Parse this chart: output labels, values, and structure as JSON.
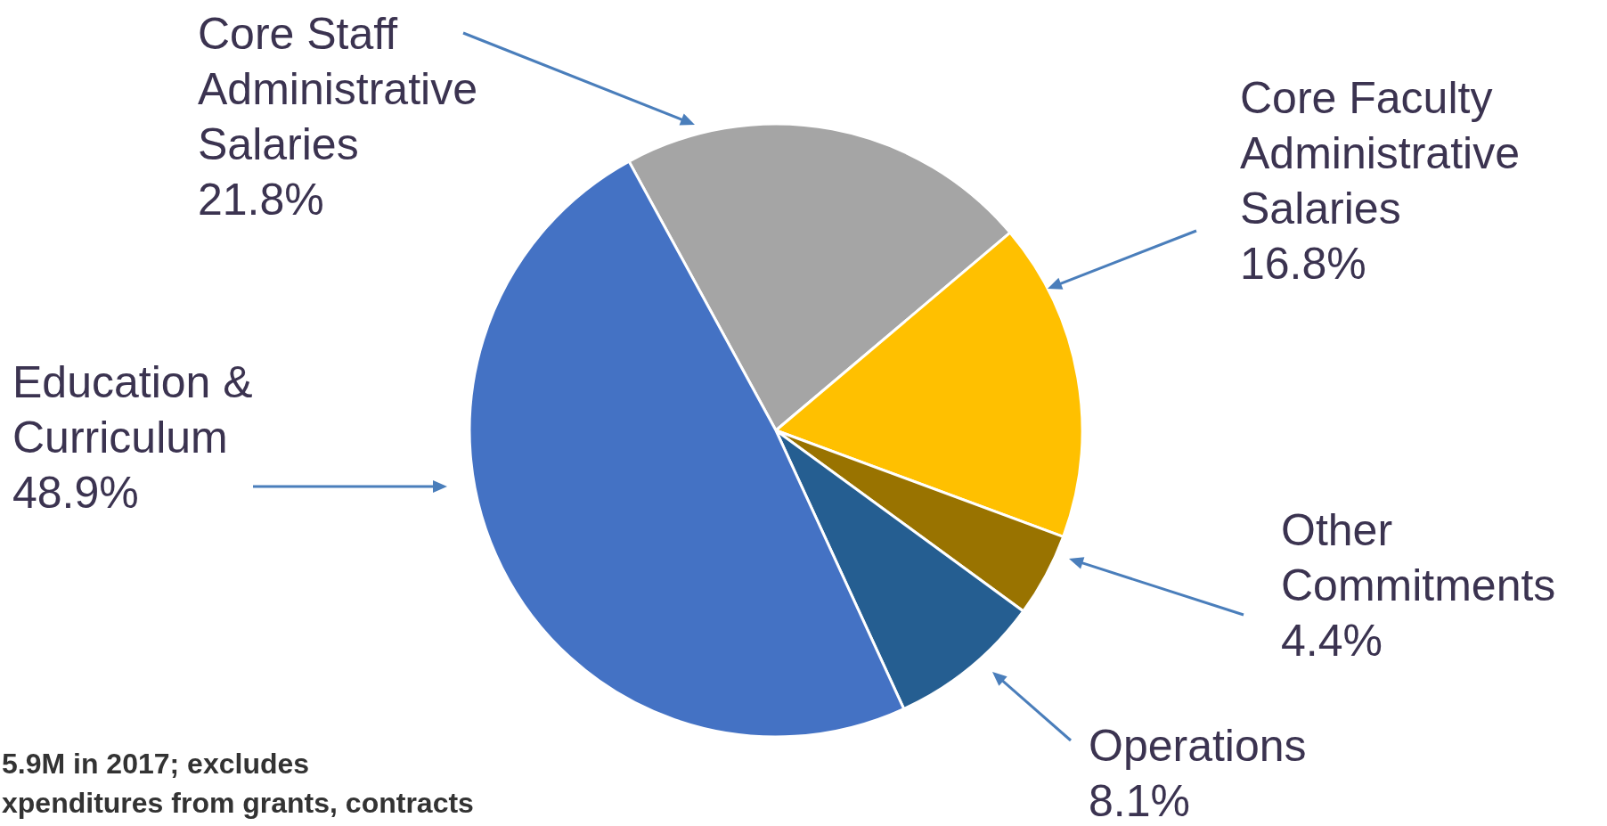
{
  "chart_data": {
    "type": "pie",
    "categories": [
      "Core Staff Administrative Salaries",
      "Core Faculty Administrative Salaries",
      "Other Commitments",
      "Operations",
      "Education & Curriculum"
    ],
    "values": [
      21.8,
      16.8,
      4.4,
      8.1,
      48.9
    ],
    "value_labels": [
      "21.8%",
      "16.8%",
      "4.4%",
      "8.1%",
      "48.9%"
    ],
    "colors": [
      "#a5a5a5",
      "#ffc000",
      "#997300",
      "#255e91",
      "#4472c4"
    ],
    "annotations": [
      "5.9M in 2017; excludes",
      "xpenditures from grants, contracts"
    ]
  }
}
